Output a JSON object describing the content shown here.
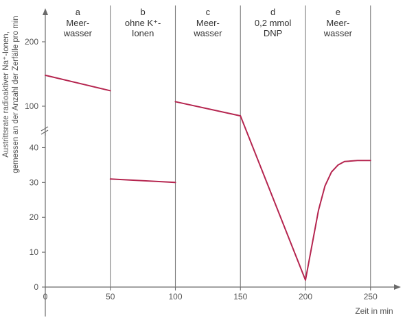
{
  "chart_data": {
    "type": "line",
    "xlabel": "Zeit in min",
    "ylabel_lines": [
      "Austrittsrate radioaktiver Na⁺-Ionen,",
      "gemessen an der Anzahl der Zerfälle pro min"
    ],
    "x_ticks": [
      0,
      50,
      100,
      150,
      200,
      250
    ],
    "y_ticks_lower": [
      0,
      10,
      20,
      30,
      40
    ],
    "y_ticks_upper": [
      100,
      200
    ],
    "xlim": [
      0,
      270
    ],
    "ylim_lower": [
      0,
      45
    ],
    "ylim_upper": [
      50,
      250
    ],
    "axis_break": true,
    "grid": false,
    "line_color": "#b5254f",
    "phases": [
      {
        "letter": "a",
        "lines": [
          "Meer-",
          "wasser"
        ],
        "x_start": 0,
        "x_end": 50
      },
      {
        "letter": "b",
        "lines": [
          "ohne K⁺-",
          "Ionen"
        ],
        "x_start": 50,
        "x_end": 100
      },
      {
        "letter": "c",
        "lines": [
          "Meer-",
          "wasser"
        ],
        "x_start": 100,
        "x_end": 150
      },
      {
        "letter": "d",
        "lines": [
          "0,2 mmol",
          "DNP"
        ],
        "x_start": 150,
        "x_end": 200
      },
      {
        "letter": "e",
        "lines": [
          "Meer-",
          "wasser"
        ],
        "x_start": 200,
        "x_end": 250
      }
    ],
    "series": [
      {
        "segment": "a",
        "points": [
          [
            0,
            148
          ],
          [
            50,
            124
          ]
        ]
      },
      {
        "segment": "b",
        "points": [
          [
            50,
            31
          ],
          [
            100,
            30
          ]
        ]
      },
      {
        "segment": "c",
        "points": [
          [
            100,
            107
          ],
          [
            150,
            85
          ]
        ]
      },
      {
        "segment": "d-e",
        "points": [
          [
            150,
            85
          ],
          [
            200,
            2
          ],
          [
            205,
            12
          ],
          [
            210,
            22
          ],
          [
            215,
            29
          ],
          [
            220,
            33
          ],
          [
            225,
            35
          ],
          [
            230,
            36
          ],
          [
            240,
            36.3
          ],
          [
            250,
            36.3
          ]
        ]
      }
    ]
  }
}
